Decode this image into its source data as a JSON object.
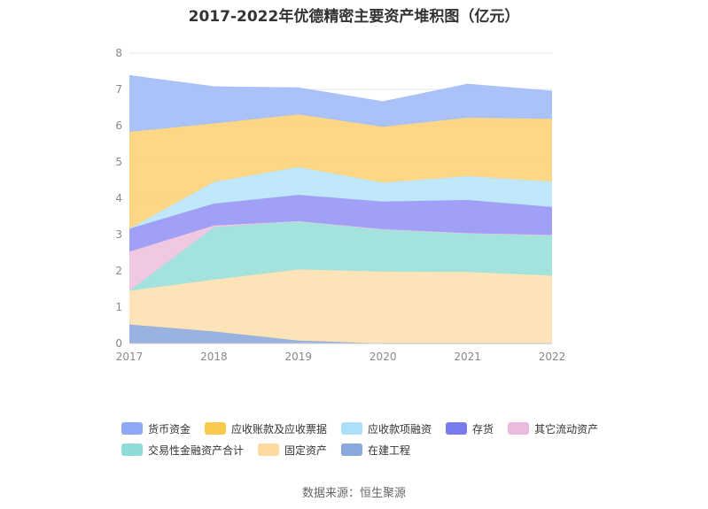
{
  "chart_data": {
    "type": "area",
    "stacked": true,
    "title": "2017-2022年优德精密主要资产堆积图（亿元）",
    "x": [
      "2017",
      "2018",
      "2019",
      "2020",
      "2021",
      "2022"
    ],
    "ylim": [
      0,
      8
    ],
    "yticks": [
      "0",
      "1",
      "2",
      "3",
      "4",
      "5",
      "6",
      "7",
      "8"
    ],
    "grid": true,
    "legend_position": "bottom",
    "series": [
      {
        "name": "在建工程",
        "color": "#93aede",
        "values": [
          0.52,
          0.33,
          0.08,
          0.0,
          0.0,
          0.0
        ]
      },
      {
        "name": "固定资产",
        "color": "#fde3b4",
        "values": [
          0.93,
          1.43,
          1.96,
          1.98,
          1.97,
          1.87
        ]
      },
      {
        "name": "交易性金融资产合计",
        "color": "#9fe0dc",
        "values": [
          0.0,
          1.44,
          1.33,
          1.17,
          1.07,
          1.12
        ]
      },
      {
        "name": "其它流动资产",
        "color": "#f0c5e0",
        "values": [
          1.08,
          0.05,
          0.0,
          0.0,
          0.0,
          0.0
        ]
      },
      {
        "name": "存货",
        "color": "#9b9bf5",
        "values": [
          0.63,
          0.6,
          0.72,
          0.76,
          0.91,
          0.77
        ]
      },
      {
        "name": "应收款项融资",
        "color": "#bde6fa",
        "values": [
          0.0,
          0.6,
          0.77,
          0.52,
          0.66,
          0.7
        ]
      },
      {
        "name": "应收账款及应收票据",
        "color": "#fdd580",
        "values": [
          2.67,
          1.61,
          1.45,
          1.54,
          1.61,
          1.73
        ]
      },
      {
        "name": "货币资金",
        "color": "#a7bff9",
        "values": [
          1.55,
          1.01,
          0.73,
          0.69,
          0.92,
          0.76
        ]
      }
    ]
  },
  "legend": {
    "row1": [
      {
        "label": "货币资金",
        "color": "#8ca8f7"
      },
      {
        "label": "应收账款及应收票据",
        "color": "#fcc94f"
      },
      {
        "label": "应收款项融资",
        "color": "#abe0f8"
      },
      {
        "label": "存货",
        "color": "#7b7bf0"
      },
      {
        "label": "其它流动资产",
        "color": "#ebbadc"
      }
    ],
    "row2": [
      {
        "label": "交易性金融资产合计",
        "color": "#8fdbd6"
      },
      {
        "label": "固定资产",
        "color": "#fdd9a0"
      },
      {
        "label": "在建工程",
        "color": "#89a8dc"
      }
    ]
  },
  "source": "数据来源：恒生聚源"
}
